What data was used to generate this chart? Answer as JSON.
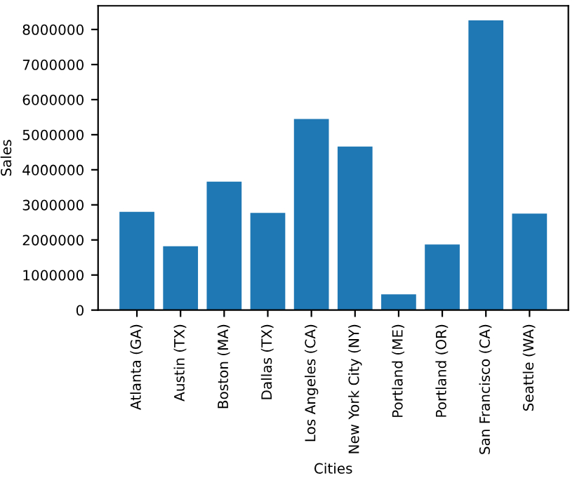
{
  "chart_data": {
    "type": "bar",
    "categories": [
      "Atlanta (GA)",
      "Austin (TX)",
      "Boston (MA)",
      "Dallas (TX)",
      "Los Angeles (CA)",
      "New York City (NY)",
      "Portland (ME)",
      "Portland (OR)",
      "San Francisco (CA)",
      "Seattle (WA)"
    ],
    "values": [
      2800000,
      1820000,
      3660000,
      2770000,
      5450000,
      4660000,
      450000,
      1870000,
      8260000,
      2750000
    ],
    "color": "#1f77b4",
    "xlabel": "Cities",
    "ylabel": "Sales",
    "ylim": [
      0,
      8675000
    ],
    "yticks": [
      0,
      1000000,
      2000000,
      3000000,
      4000000,
      5000000,
      6000000,
      7000000,
      8000000
    ],
    "grid": false
  }
}
